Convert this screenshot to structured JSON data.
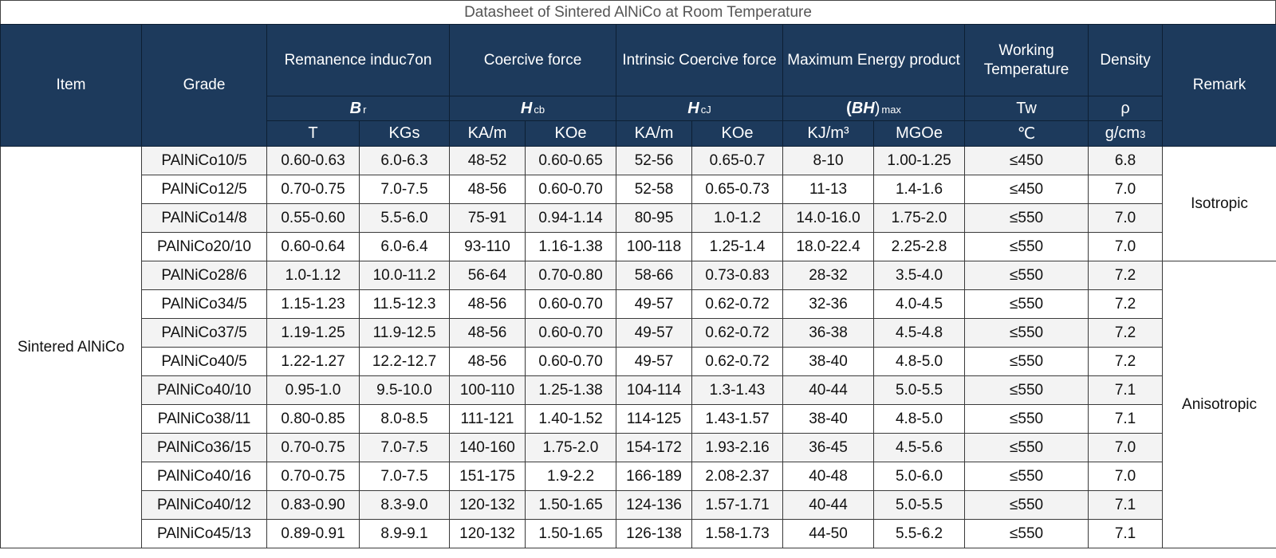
{
  "title": "Datasheet of Sintered AlNiCo at Room Temperature",
  "header": {
    "item": "Item",
    "grade": "Grade",
    "remanence": "Remanence induc7on",
    "coercive": "Coercive force",
    "intrinsic": "Intrinsic Coercive force",
    "energy": "Maximum Energy product",
    "working": "Working Temperature",
    "density": "Density",
    "remark": "Remark",
    "sym_br_main": "B",
    "sym_br_sub": "r",
    "sym_hcb_main": "H",
    "sym_hcb_sub": "cb",
    "sym_hcj_main": "H",
    "sym_hcj_sub": "cJ",
    "sym_bh_open": "(",
    "sym_bh_main": "BH",
    "sym_bh_close": ")",
    "sym_bh_sub": "max",
    "sym_tw": "Tw",
    "sym_rho": "ρ",
    "units": {
      "br_t": "T",
      "br_kgs": "KGs",
      "hcb_kam": "KA/m",
      "hcb_koe": "KOe",
      "hcj_kam": "KA/m",
      "hcj_koe": "KOe",
      "bh_kj": "KJ/m³",
      "bh_mgoe": "MGOe",
      "temp": "℃",
      "density_main": "g/cm",
      "density_sub": "3"
    }
  },
  "item_label": "Sintered AlNiCo",
  "remark_isotropic": "Isotropic",
  "remark_anisotropic": "Anisotropic",
  "rows": [
    {
      "grade": "PAlNiCo10/5",
      "br_t": "0.60-0.63",
      "br_kgs": "6.0-6.3",
      "hcb_kam": "48-52",
      "hcb_koe": "0.60-0.65",
      "hcj_kam": "52-56",
      "hcj_koe": "0.65-0.7",
      "bh_kj": "8-10",
      "bh_mgoe": "1.00-1.25",
      "tw": "≤450",
      "density": "6.8"
    },
    {
      "grade": "PAlNiCo12/5",
      "br_t": "0.70-0.75",
      "br_kgs": "7.0-7.5",
      "hcb_kam": "48-56",
      "hcb_koe": "0.60-0.70",
      "hcj_kam": "52-58",
      "hcj_koe": "0.65-0.73",
      "bh_kj": "11-13",
      "bh_mgoe": "1.4-1.6",
      "tw": "≤450",
      "density": "7.0"
    },
    {
      "grade": "PAlNiCo14/8",
      "br_t": "0.55-0.60",
      "br_kgs": "5.5-6.0",
      "hcb_kam": "75-91",
      "hcb_koe": "0.94-1.14",
      "hcj_kam": "80-95",
      "hcj_koe": "1.0-1.2",
      "bh_kj": "14.0-16.0",
      "bh_mgoe": "1.75-2.0",
      "tw": "≤550",
      "density": "7.0"
    },
    {
      "grade": "PAlNiCo20/10",
      "br_t": "0.60-0.64",
      "br_kgs": "6.0-6.4",
      "hcb_kam": "93-110",
      "hcb_koe": "1.16-1.38",
      "hcj_kam": "100-118",
      "hcj_koe": "1.25-1.4",
      "bh_kj": "18.0-22.4",
      "bh_mgoe": "2.25-2.8",
      "tw": "≤550",
      "density": "7.0"
    },
    {
      "grade": "PAlNiCo28/6",
      "br_t": "1.0-1.12",
      "br_kgs": "10.0-11.2",
      "hcb_kam": "56-64",
      "hcb_koe": "0.70-0.80",
      "hcj_kam": "58-66",
      "hcj_koe": "0.73-0.83",
      "bh_kj": "28-32",
      "bh_mgoe": "3.5-4.0",
      "tw": "≤550",
      "density": "7.2"
    },
    {
      "grade": "PAlNiCo34/5",
      "br_t": "1.15-1.23",
      "br_kgs": "11.5-12.3",
      "hcb_kam": "48-56",
      "hcb_koe": "0.60-0.70",
      "hcj_kam": "49-57",
      "hcj_koe": "0.62-0.72",
      "bh_kj": "32-36",
      "bh_mgoe": "4.0-4.5",
      "tw": "≤550",
      "density": "7.2"
    },
    {
      "grade": "PAlNiCo37/5",
      "br_t": "1.19-1.25",
      "br_kgs": "11.9-12.5",
      "hcb_kam": "48-56",
      "hcb_koe": "0.60-0.70",
      "hcj_kam": "49-57",
      "hcj_koe": "0.62-0.72",
      "bh_kj": "36-38",
      "bh_mgoe": "4.5-4.8",
      "tw": "≤550",
      "density": "7.2"
    },
    {
      "grade": "PAlNiCo40/5",
      "br_t": "1.22-1.27",
      "br_kgs": "12.2-12.7",
      "hcb_kam": "48-56",
      "hcb_koe": "0.60-0.70",
      "hcj_kam": "49-57",
      "hcj_koe": "0.62-0.72",
      "bh_kj": "38-40",
      "bh_mgoe": "4.8-5.0",
      "tw": "≤550",
      "density": "7.2"
    },
    {
      "grade": "PAlNiCo40/10",
      "br_t": "0.95-1.0",
      "br_kgs": "9.5-10.0",
      "hcb_kam": "100-110",
      "hcb_koe": "1.25-1.38",
      "hcj_kam": "104-114",
      "hcj_koe": "1.3-1.43",
      "bh_kj": "40-44",
      "bh_mgoe": "5.0-5.5",
      "tw": "≤550",
      "density": "7.1"
    },
    {
      "grade": "PAlNiCo38/11",
      "br_t": "0.80-0.85",
      "br_kgs": "8.0-8.5",
      "hcb_kam": "111-121",
      "hcb_koe": "1.40-1.52",
      "hcj_kam": "114-125",
      "hcj_koe": "1.43-1.57",
      "bh_kj": "38-40",
      "bh_mgoe": "4.8-5.0",
      "tw": "≤550",
      "density": "7.1"
    },
    {
      "grade": "PAlNiCo36/15",
      "br_t": "0.70-0.75",
      "br_kgs": "7.0-7.5",
      "hcb_kam": "140-160",
      "hcb_koe": "1.75-2.0",
      "hcj_kam": "154-172",
      "hcj_koe": "1.93-2.16",
      "bh_kj": "36-45",
      "bh_mgoe": "4.5-5.6",
      "tw": "≤550",
      "density": "7.0"
    },
    {
      "grade": "PAlNiCo40/16",
      "br_t": "0.70-0.75",
      "br_kgs": "7.0-7.5",
      "hcb_kam": "151-175",
      "hcb_koe": "1.9-2.2",
      "hcj_kam": "166-189",
      "hcj_koe": "2.08-2.37",
      "bh_kj": "40-48",
      "bh_mgoe": "5.0-6.0",
      "tw": "≤550",
      "density": "7.0"
    },
    {
      "grade": "PAlNiCo40/12",
      "br_t": "0.83-0.90",
      "br_kgs": "8.3-9.0",
      "hcb_kam": "120-132",
      "hcb_koe": "1.50-1.65",
      "hcj_kam": "124-136",
      "hcj_koe": "1.57-1.71",
      "bh_kj": "40-44",
      "bh_mgoe": "5.0-5.5",
      "tw": "≤550",
      "density": "7.1"
    },
    {
      "grade": "PAlNiCo45/13",
      "br_t": "0.89-0.91",
      "br_kgs": "8.9-9.1",
      "hcb_kam": "120-132",
      "hcb_koe": "1.50-1.65",
      "hcj_kam": "126-138",
      "hcj_koe": "1.58-1.73",
      "bh_kj": "44-50",
      "bh_mgoe": "5.5-6.2",
      "tw": "≤550",
      "density": "7.1"
    }
  ]
}
